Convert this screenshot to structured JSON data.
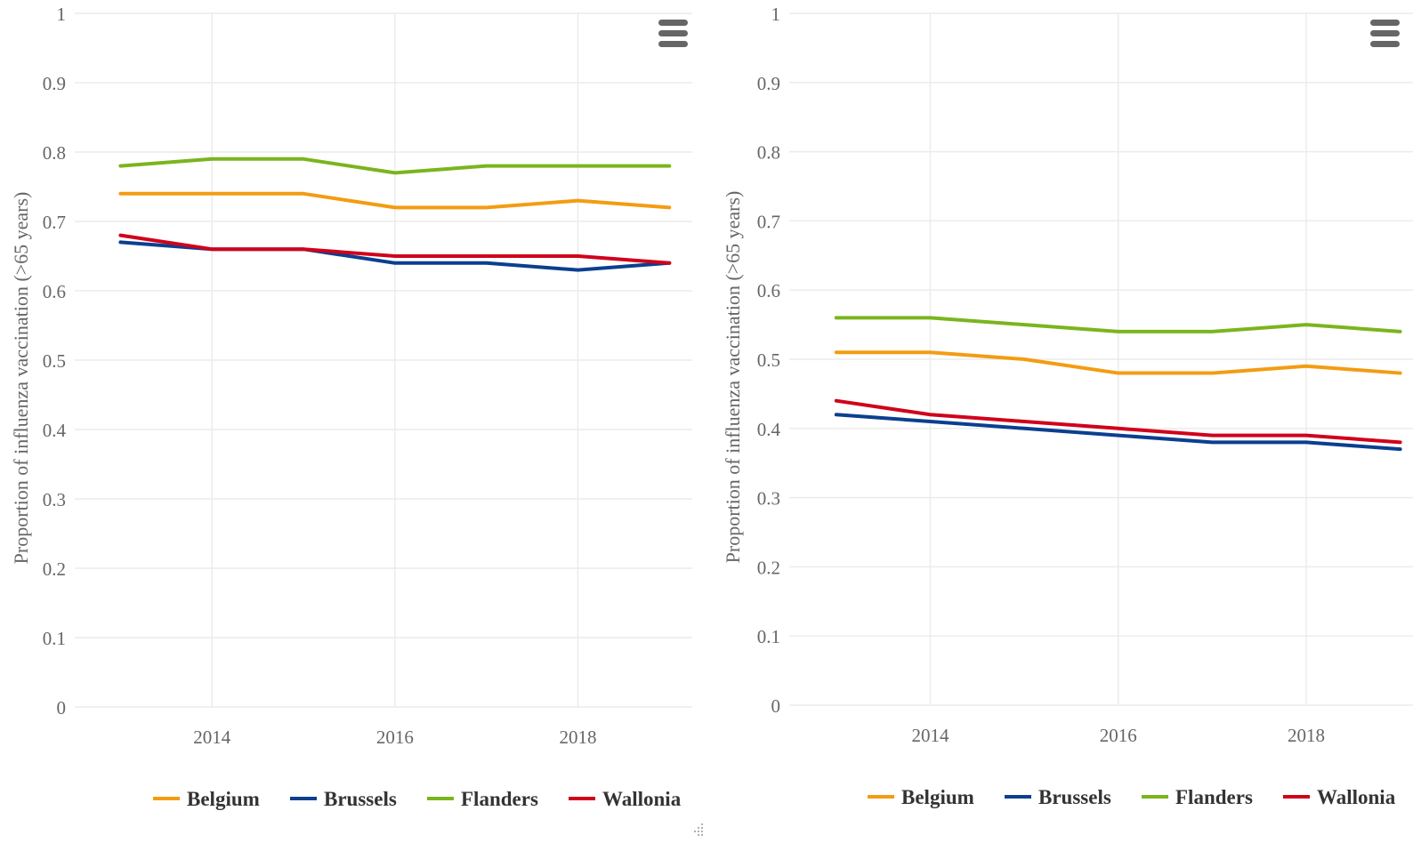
{
  "chart_data": [
    {
      "type": "line",
      "ylabel": "Proportion of influenza vaccination (>65 years)",
      "xlabel": "",
      "x": [
        2013,
        2014,
        2015,
        2016,
        2017,
        2018,
        2019
      ],
      "xlim": [
        2012.5,
        2019.25
      ],
      "ylim": [
        0,
        1
      ],
      "yticks": [
        "0",
        "0.1",
        "0.2",
        "0.3",
        "0.4",
        "0.5",
        "0.6",
        "0.7",
        "0.8",
        "0.9",
        "1"
      ],
      "xticks": [
        "2014",
        "2016",
        "2018"
      ],
      "grid": true,
      "legend_position": "bottom",
      "series": [
        {
          "name": "Belgium",
          "color": "#f39c12",
          "values": [
            0.74,
            0.74,
            0.74,
            0.72,
            0.72,
            0.73,
            0.72
          ]
        },
        {
          "name": "Brussels",
          "color": "#0b3f8f",
          "values": [
            0.67,
            0.66,
            0.66,
            0.64,
            0.64,
            0.63,
            0.64
          ]
        },
        {
          "name": "Flanders",
          "color": "#7ab51d",
          "values": [
            0.78,
            0.79,
            0.79,
            0.77,
            0.78,
            0.78,
            0.78
          ]
        },
        {
          "name": "Wallonia",
          "color": "#d0021b",
          "values": [
            0.68,
            0.66,
            0.66,
            0.65,
            0.65,
            0.65,
            0.64
          ]
        }
      ]
    },
    {
      "type": "line",
      "ylabel": "Proportion of influenza vaccination (>65 years)",
      "xlabel": "",
      "x": [
        2013,
        2014,
        2015,
        2016,
        2017,
        2018,
        2019
      ],
      "xlim": [
        2012.5,
        2019.25
      ],
      "ylim": [
        0,
        1
      ],
      "yticks": [
        "0",
        "0.1",
        "0.2",
        "0.3",
        "0.4",
        "0.5",
        "0.6",
        "0.7",
        "0.8",
        "0.9",
        "1"
      ],
      "xticks": [
        "2014",
        "2016",
        "2018"
      ],
      "grid": true,
      "legend_position": "bottom",
      "series": [
        {
          "name": "Belgium",
          "color": "#f39c12",
          "values": [
            0.51,
            0.51,
            0.5,
            0.48,
            0.48,
            0.49,
            0.48
          ]
        },
        {
          "name": "Brussels",
          "color": "#0b3f8f",
          "values": [
            0.42,
            0.41,
            0.4,
            0.39,
            0.38,
            0.38,
            0.37
          ]
        },
        {
          "name": "Flanders",
          "color": "#7ab51d",
          "values": [
            0.56,
            0.56,
            0.55,
            0.54,
            0.54,
            0.55,
            0.54
          ]
        },
        {
          "name": "Wallonia",
          "color": "#d0021b",
          "values": [
            0.44,
            0.42,
            0.41,
            0.4,
            0.39,
            0.39,
            0.38
          ]
        }
      ]
    }
  ],
  "icons": {
    "menu": "hamburger-menu-icon",
    "resize": "resize-grip-icon"
  }
}
